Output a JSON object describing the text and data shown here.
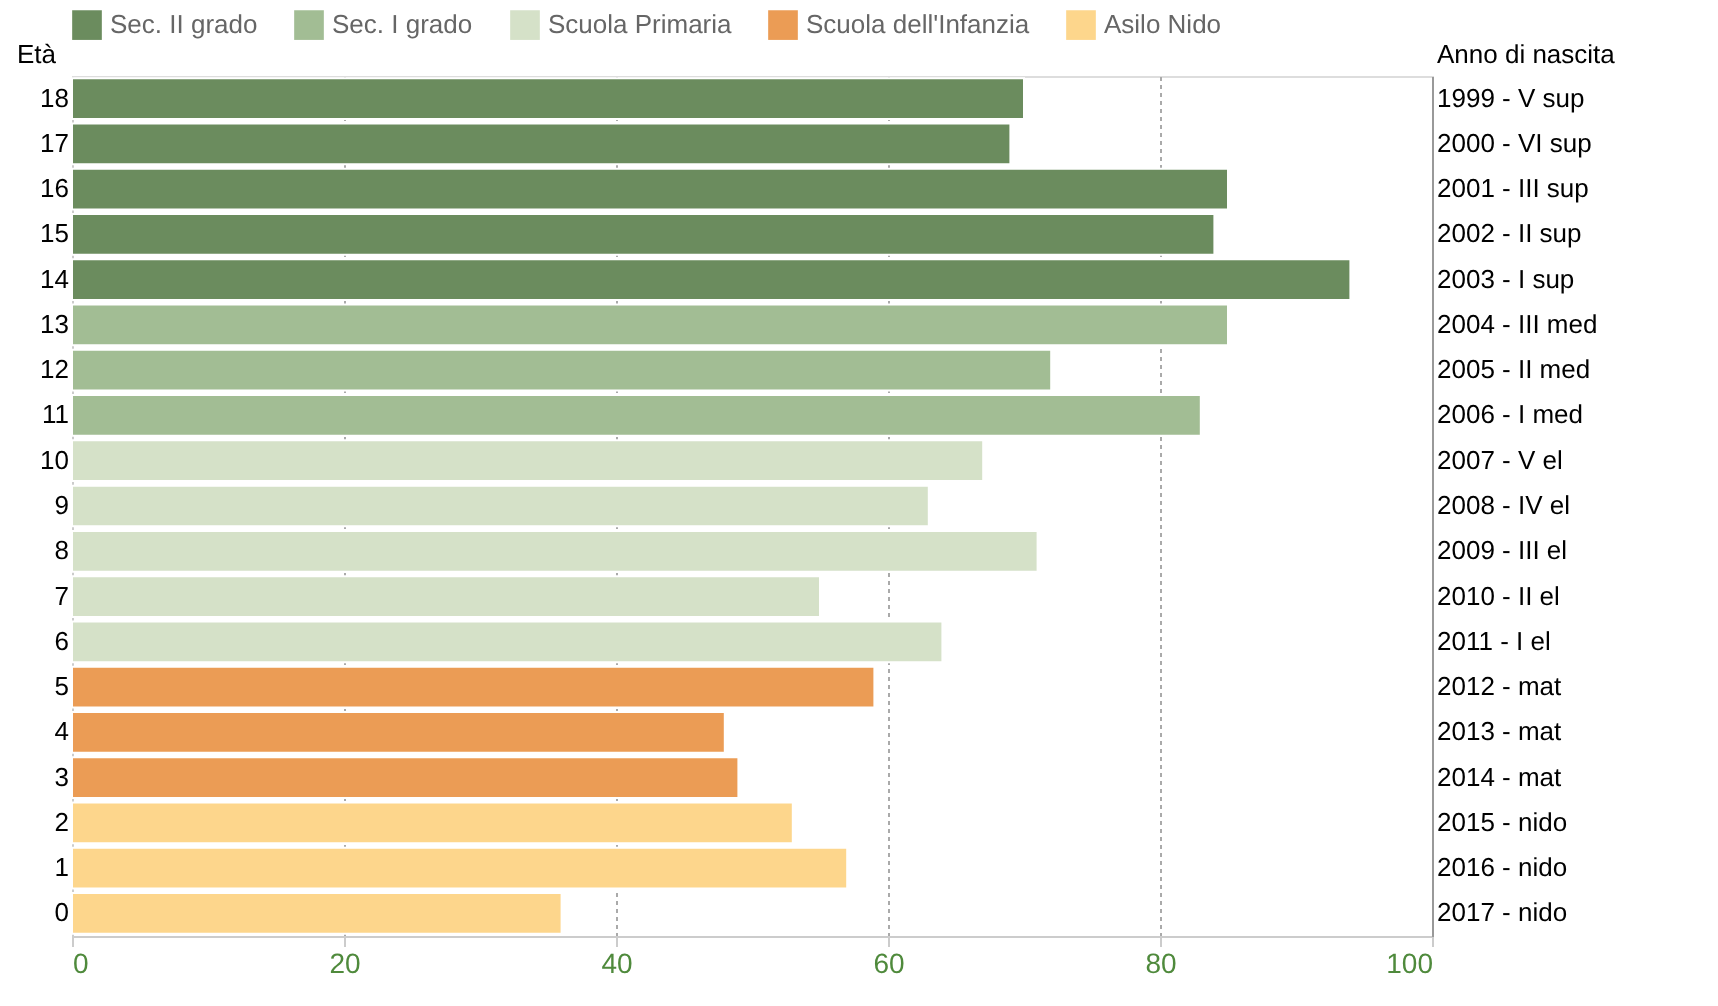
{
  "chart_data": {
    "type": "bar",
    "orientation": "horizontal",
    "ylabel": "Età",
    "y2label": "Anno di nascita",
    "categories": [
      "18",
      "17",
      "16",
      "15",
      "14",
      "13",
      "12",
      "11",
      "10",
      "9",
      "8",
      "7",
      "6",
      "5",
      "4",
      "3",
      "2",
      "1",
      "0"
    ],
    "y2_categories": [
      "1999 - V sup",
      "2000 - VI sup",
      "2001 - III sup",
      "2002 - II sup",
      "2003 - I sup",
      "2004 - III med",
      "2005 - II med",
      "2006 - I med",
      "2007 - V el",
      "2008 - IV el",
      "2009 - III el",
      "2010 - II el",
      "2011 - I el",
      "2012 - mat",
      "2013 - mat",
      "2014 - mat",
      "2015 - nido",
      "2016 - nido",
      "2017 - nido"
    ],
    "series": [
      {
        "name": "Sec. II grado",
        "color": "#6b8c5e",
        "values": [
          70,
          69,
          85,
          84,
          94,
          null,
          null,
          null,
          null,
          null,
          null,
          null,
          null,
          null,
          null,
          null,
          null,
          null,
          null
        ]
      },
      {
        "name": "Sec. I grado",
        "color": "#a2bd94",
        "values": [
          null,
          null,
          null,
          null,
          null,
          85,
          72,
          83,
          null,
          null,
          null,
          null,
          null,
          null,
          null,
          null,
          null,
          null,
          null
        ]
      },
      {
        "name": "Scuola Primaria",
        "color": "#d5e1c8",
        "values": [
          null,
          null,
          null,
          null,
          null,
          null,
          null,
          null,
          67,
          63,
          71,
          55,
          64,
          null,
          null,
          null,
          null,
          null,
          null
        ]
      },
      {
        "name": "Scuola dell'Infanzia",
        "color": "#eb9c55",
        "values": [
          null,
          null,
          null,
          null,
          null,
          null,
          null,
          null,
          null,
          null,
          null,
          null,
          null,
          59,
          48,
          49,
          null,
          null,
          null
        ]
      },
      {
        "name": "Asilo Nido",
        "color": "#fdd68c",
        "values": [
          null,
          null,
          null,
          null,
          null,
          null,
          null,
          null,
          null,
          null,
          null,
          null,
          null,
          null,
          null,
          null,
          53,
          57,
          36
        ]
      }
    ],
    "xlim": [
      0,
      100
    ],
    "xticks": [
      0,
      20,
      40,
      60,
      80,
      100
    ],
    "grid": "x",
    "legend": "top"
  }
}
